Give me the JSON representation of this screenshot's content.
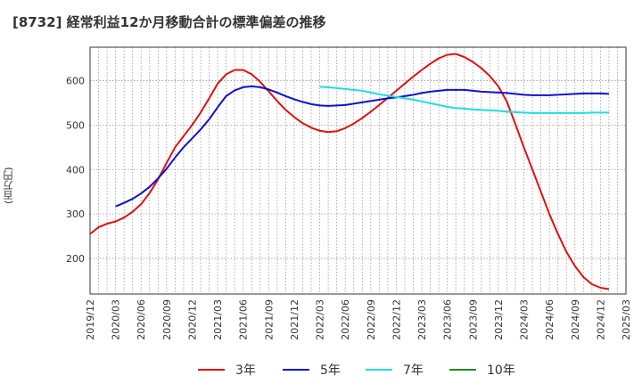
{
  "chart_data": {
    "type": "line",
    "title": "[8732]  経常利益12か月移動合計の標準偏差の推移",
    "ylabel": "(百万円)",
    "xlabel": "",
    "ylim": [
      120,
      675
    ],
    "yticks": [
      200,
      300,
      400,
      500,
      600
    ],
    "xticks": [
      "2019/12",
      "2020/03",
      "2020/06",
      "2020/09",
      "2020/12",
      "2021/03",
      "2021/06",
      "2021/09",
      "2021/12",
      "2022/03",
      "2022/06",
      "2022/09",
      "2022/12",
      "2023/03",
      "2023/06",
      "2023/09",
      "2023/12",
      "2024/03",
      "2024/06",
      "2024/09",
      "2024/12",
      "2025/03"
    ],
    "grid": true,
    "legend_position": "bottom",
    "series": [
      {
        "name": "3年",
        "color": "#dd1111",
        "points": [
          [
            "2019/12",
            255
          ],
          [
            "2020/01",
            270
          ],
          [
            "2020/02",
            278
          ],
          [
            "2020/03",
            283
          ],
          [
            "2020/04",
            292
          ],
          [
            "2020/05",
            305
          ],
          [
            "2020/06",
            322
          ],
          [
            "2020/07",
            347
          ],
          [
            "2020/08",
            378
          ],
          [
            "2020/09",
            415
          ],
          [
            "2020/10",
            450
          ],
          [
            "2020/11",
            475
          ],
          [
            "2020/12",
            500
          ],
          [
            "2021/01",
            528
          ],
          [
            "2021/02",
            560
          ],
          [
            "2021/03",
            593
          ],
          [
            "2021/04",
            614
          ],
          [
            "2021/05",
            624
          ],
          [
            "2021/06",
            624
          ],
          [
            "2021/07",
            614
          ],
          [
            "2021/08",
            597
          ],
          [
            "2021/09",
            576
          ],
          [
            "2021/10",
            554
          ],
          [
            "2021/11",
            534
          ],
          [
            "2021/12",
            518
          ],
          [
            "2022/01",
            504
          ],
          [
            "2022/02",
            494
          ],
          [
            "2022/03",
            487
          ],
          [
            "2022/04",
            484
          ],
          [
            "2022/05",
            486
          ],
          [
            "2022/06",
            493
          ],
          [
            "2022/07",
            503
          ],
          [
            "2022/08",
            516
          ],
          [
            "2022/09",
            530
          ],
          [
            "2022/10",
            545
          ],
          [
            "2022/11",
            561
          ],
          [
            "2022/12",
            577
          ],
          [
            "2023/01",
            593
          ],
          [
            "2023/02",
            609
          ],
          [
            "2023/03",
            624
          ],
          [
            "2023/04",
            638
          ],
          [
            "2023/05",
            650
          ],
          [
            "2023/06",
            658
          ],
          [
            "2023/07",
            660
          ],
          [
            "2023/08",
            653
          ],
          [
            "2023/09",
            642
          ],
          [
            "2023/10",
            628
          ],
          [
            "2023/11",
            610
          ],
          [
            "2023/12",
            587
          ],
          [
            "2024/01",
            553
          ],
          [
            "2024/02",
            502
          ],
          [
            "2024/03",
            450
          ],
          [
            "2024/04",
            400
          ],
          [
            "2024/05",
            350
          ],
          [
            "2024/06",
            300
          ],
          [
            "2024/07",
            255
          ],
          [
            "2024/08",
            215
          ],
          [
            "2024/09",
            183
          ],
          [
            "2024/10",
            158
          ],
          [
            "2024/11",
            142
          ],
          [
            "2024/12",
            134
          ],
          [
            "2025/01",
            131
          ]
        ]
      },
      {
        "name": "5年",
        "color": "#1111cc",
        "points": [
          [
            "2020/03",
            317
          ],
          [
            "2020/04",
            325
          ],
          [
            "2020/05",
            334
          ],
          [
            "2020/06",
            346
          ],
          [
            "2020/07",
            361
          ],
          [
            "2020/08",
            380
          ],
          [
            "2020/09",
            402
          ],
          [
            "2020/10",
            427
          ],
          [
            "2020/11",
            450
          ],
          [
            "2020/12",
            470
          ],
          [
            "2021/01",
            490
          ],
          [
            "2021/02",
            513
          ],
          [
            "2021/03",
            540
          ],
          [
            "2021/04",
            565
          ],
          [
            "2021/05",
            578
          ],
          [
            "2021/06",
            585
          ],
          [
            "2021/07",
            587
          ],
          [
            "2021/08",
            585
          ],
          [
            "2021/09",
            580
          ],
          [
            "2021/10",
            573
          ],
          [
            "2021/11",
            565
          ],
          [
            "2021/12",
            558
          ],
          [
            "2022/01",
            552
          ],
          [
            "2022/02",
            547
          ],
          [
            "2022/03",
            544
          ],
          [
            "2022/04",
            543
          ],
          [
            "2022/05",
            544
          ],
          [
            "2022/06",
            545
          ],
          [
            "2022/07",
            548
          ],
          [
            "2022/08",
            551
          ],
          [
            "2022/09",
            554
          ],
          [
            "2022/10",
            557
          ],
          [
            "2022/11",
            560
          ],
          [
            "2022/12",
            562
          ],
          [
            "2023/01",
            565
          ],
          [
            "2023/02",
            568
          ],
          [
            "2023/03",
            572
          ],
          [
            "2023/04",
            575
          ],
          [
            "2023/05",
            577
          ],
          [
            "2023/06",
            579
          ],
          [
            "2023/07",
            579
          ],
          [
            "2023/08",
            579
          ],
          [
            "2023/09",
            577
          ],
          [
            "2023/10",
            575
          ],
          [
            "2023/11",
            574
          ],
          [
            "2023/12",
            573
          ],
          [
            "2024/01",
            572
          ],
          [
            "2024/02",
            570
          ],
          [
            "2024/03",
            568
          ],
          [
            "2024/04",
            567
          ],
          [
            "2024/05",
            567
          ],
          [
            "2024/06",
            567
          ],
          [
            "2024/07",
            568
          ],
          [
            "2024/08",
            569
          ],
          [
            "2024/09",
            570
          ],
          [
            "2024/10",
            571
          ],
          [
            "2024/11",
            571
          ],
          [
            "2024/12",
            571
          ],
          [
            "2025/01",
            570
          ]
        ]
      },
      {
        "name": "7年",
        "color": "#22dddd",
        "points": [
          [
            "2022/03",
            586
          ],
          [
            "2022/04",
            585
          ],
          [
            "2022/05",
            583
          ],
          [
            "2022/06",
            581
          ],
          [
            "2022/07",
            579
          ],
          [
            "2022/08",
            577
          ],
          [
            "2022/09",
            573
          ],
          [
            "2022/10",
            569
          ],
          [
            "2022/11",
            566
          ],
          [
            "2022/12",
            563
          ],
          [
            "2023/01",
            560
          ],
          [
            "2023/02",
            557
          ],
          [
            "2023/03",
            553
          ],
          [
            "2023/04",
            549
          ],
          [
            "2023/05",
            545
          ],
          [
            "2023/06",
            541
          ],
          [
            "2023/07",
            538
          ],
          [
            "2023/08",
            537
          ],
          [
            "2023/09",
            535
          ],
          [
            "2023/10",
            534
          ],
          [
            "2023/11",
            533
          ],
          [
            "2023/12",
            532
          ],
          [
            "2024/01",
            530
          ],
          [
            "2024/02",
            529
          ],
          [
            "2024/03",
            528
          ],
          [
            "2024/04",
            527
          ],
          [
            "2024/05",
            527
          ],
          [
            "2024/06",
            527
          ],
          [
            "2024/07",
            527
          ],
          [
            "2024/08",
            527
          ],
          [
            "2024/09",
            527
          ],
          [
            "2024/10",
            527
          ],
          [
            "2024/11",
            528
          ],
          [
            "2024/12",
            528
          ],
          [
            "2025/01",
            528
          ]
        ]
      },
      {
        "name": "10年",
        "color": "#228822",
        "points": []
      }
    ]
  }
}
